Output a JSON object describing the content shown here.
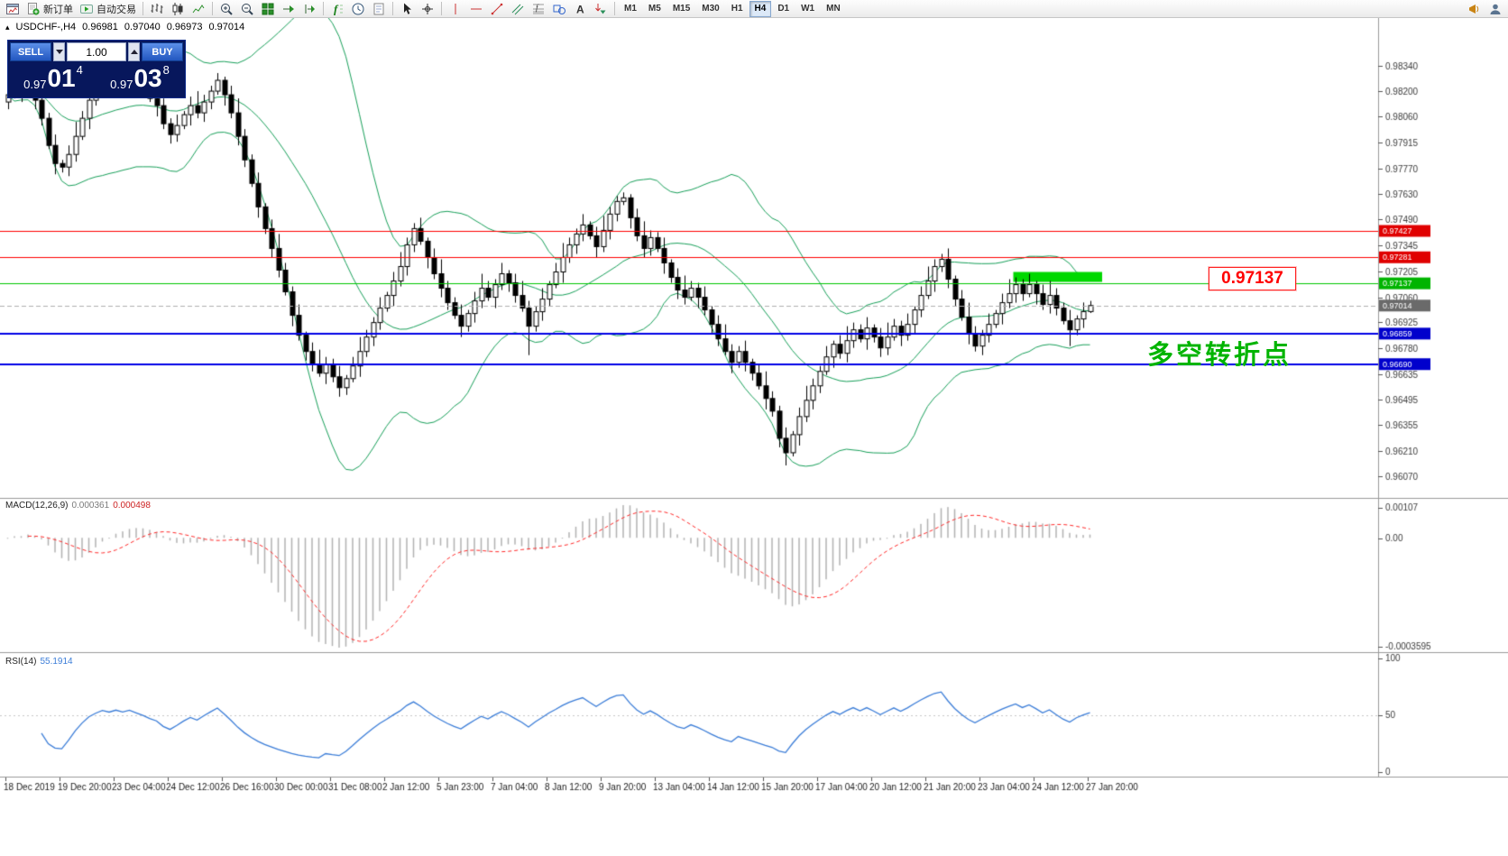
{
  "toolbar": {
    "buttons": [
      {
        "icon": "chart-window"
      },
      {
        "icon": "new-order",
        "label": "新订单"
      },
      {
        "icon": "autotrade",
        "label": "自动交易"
      },
      {
        "sep": true
      },
      {
        "icon": "bars-chart"
      },
      {
        "icon": "candles-chart"
      },
      {
        "icon": "line-chart"
      },
      {
        "sep": true
      },
      {
        "icon": "zoom-in"
      },
      {
        "icon": "zoom-out"
      },
      {
        "icon": "tile-windows"
      },
      {
        "icon": "auto-scroll"
      },
      {
        "icon": "chart-shift"
      },
      {
        "sep": true
      },
      {
        "icon": "indicators"
      },
      {
        "icon": "periods"
      },
      {
        "icon": "templates"
      },
      {
        "sep": true
      },
      {
        "icon": "cursor"
      },
      {
        "icon": "crosshair"
      },
      {
        "sep": true
      },
      {
        "icon": "vline"
      },
      {
        "icon": "hline"
      },
      {
        "icon": "trendline"
      },
      {
        "icon": "channel"
      },
      {
        "icon": "fibonacci"
      },
      {
        "icon": "shapes"
      },
      {
        "icon": "text-tool"
      },
      {
        "icon": "arrows"
      },
      {
        "sep": true
      },
      {
        "tf": "M1"
      },
      {
        "tf": "M5"
      },
      {
        "tf": "M15"
      },
      {
        "tf": "M30"
      },
      {
        "tf": "H1"
      },
      {
        "tf": "H4",
        "active": true
      },
      {
        "tf": "D1"
      },
      {
        "tf": "W1"
      },
      {
        "tf": "MN"
      },
      {
        "icon": "megaphone",
        "right": true
      },
      {
        "icon": "community"
      }
    ]
  },
  "chart_header": {
    "collapse_icon": "▴",
    "symbol": "USDCHF-,H4",
    "open": "0.96981",
    "high": "0.97040",
    "low": "0.96973",
    "close": "0.97014"
  },
  "trade_panel": {
    "sell_label": "SELL",
    "buy_label": "BUY",
    "volume": "1.00",
    "sell_price_prefix": "0.97",
    "sell_price_big": "01",
    "sell_price_sup": "4",
    "buy_price_prefix": "0.97",
    "buy_price_big": "03",
    "buy_price_sup": "8"
  },
  "indicator_labels": {
    "macd_name": "MACD(12,26,9)",
    "macd_main": "0.000361",
    "macd_signal": "0.000498",
    "rsi_name": "RSI(14)",
    "rsi_value": "55.1914"
  },
  "annotations": {
    "price_callout": "0.97137",
    "turning_point": "多空转折点"
  },
  "chart_data": [
    {
      "type": "candlestick",
      "title": "USDCHF-,H4",
      "first_open": 0.9814,
      "closes": [
        0.9818,
        0.9825,
        0.982,
        0.9827,
        0.9815,
        0.9805,
        0.979,
        0.978,
        0.9778,
        0.9785,
        0.9795,
        0.9805,
        0.9815,
        0.9822,
        0.9828,
        0.9825,
        0.9829,
        0.9826,
        0.9829,
        0.9825,
        0.9821,
        0.9816,
        0.9812,
        0.9802,
        0.9796,
        0.9801,
        0.9807,
        0.9812,
        0.9808,
        0.9814,
        0.982,
        0.9826,
        0.9818,
        0.9808,
        0.9795,
        0.9782,
        0.9769,
        0.9756,
        0.9744,
        0.9733,
        0.9721,
        0.9709,
        0.9696,
        0.9685,
        0.9676,
        0.9669,
        0.9664,
        0.9669,
        0.9662,
        0.9656,
        0.9661,
        0.9668,
        0.9676,
        0.9684,
        0.9692,
        0.97,
        0.9707,
        0.9715,
        0.9723,
        0.9735,
        0.9744,
        0.9737,
        0.9728,
        0.9719,
        0.9711,
        0.9703,
        0.9696,
        0.969,
        0.9697,
        0.9704,
        0.9711,
        0.9706,
        0.9713,
        0.9719,
        0.9714,
        0.9707,
        0.97,
        0.969,
        0.9698,
        0.9705,
        0.9713,
        0.972,
        0.9728,
        0.9735,
        0.9741,
        0.9746,
        0.974,
        0.9734,
        0.9743,
        0.9752,
        0.9759,
        0.9761,
        0.975,
        0.974,
        0.9733,
        0.9739,
        0.9733,
        0.9725,
        0.9717,
        0.971,
        0.9706,
        0.9711,
        0.9706,
        0.9699,
        0.9691,
        0.9683,
        0.9676,
        0.967,
        0.9676,
        0.967,
        0.9664,
        0.9657,
        0.965,
        0.9643,
        0.9628,
        0.962,
        0.963,
        0.964,
        0.9649,
        0.9657,
        0.9665,
        0.9673,
        0.968,
        0.9675,
        0.9682,
        0.9688,
        0.9683,
        0.9689,
        0.9684,
        0.9678,
        0.9684,
        0.969,
        0.9685,
        0.9691,
        0.9699,
        0.9707,
        0.9715,
        0.9723,
        0.9727,
        0.9716,
        0.9705,
        0.9695,
        0.9686,
        0.9679,
        0.9685,
        0.9691,
        0.9697,
        0.9703,
        0.9708,
        0.9713,
        0.9708,
        0.9713,
        0.9708,
        0.9702,
        0.9707,
        0.97,
        0.9693,
        0.9688,
        0.9694,
        0.96981,
        0.97014
      ],
      "wick_high_pips": [
        3,
        6,
        2,
        5,
        8,
        4
      ],
      "wick_low_pips": [
        4,
        2,
        6,
        3,
        5
      ],
      "wick_overrides": {
        "31": {
          "high": 0.983
        },
        "77": {
          "low": 0.9674
        },
        "91": {
          "high": 0.9764
        },
        "115": {
          "low": 0.9613
        },
        "138": {
          "high": 0.973
        },
        "157": {
          "low": 0.9679
        }
      },
      "last_candle": {
        "open": 0.96981,
        "high": 0.9704,
        "low": 0.96973,
        "close": 0.97014
      },
      "bollinger": {
        "period": 20,
        "deviation": 2,
        "color": "#18a05a"
      },
      "y_ticks": [
        "0.98340",
        "0.98200",
        "0.98060",
        "0.97915",
        "0.97770",
        "0.97630",
        "0.97490",
        "0.97345",
        "0.97205",
        "0.97060",
        "0.96925",
        "0.96780",
        "0.96635",
        "0.96495",
        "0.96355",
        "0.96210",
        "0.96070"
      ],
      "x_labels": [
        "18 Dec 2019",
        "19 Dec 20:00",
        "23 Dec 04:00",
        "24 Dec 12:00",
        "26 Dec 16:00",
        "30 Dec 00:00",
        "31 Dec 08:00",
        "2 Jan 12:00",
        "5 Jan 23:00",
        "7 Jan 04:00",
        "8 Jan 12:00",
        "9 Jan 20:00",
        "13 Jan 04:00",
        "14 Jan 12:00",
        "15 Jan 20:00",
        "17 Jan 04:00",
        "20 Jan 12:00",
        "21 Jan 20:00",
        "23 Jan 04:00",
        "24 Jan 12:00",
        "27 Jan 20:00"
      ],
      "x_label_step_candles": 8,
      "hlines": [
        {
          "price": 0.97427,
          "color": "#ff0000",
          "width": 1,
          "box": "#e00000"
        },
        {
          "price": 0.97281,
          "color": "#ff0000",
          "width": 1,
          "box": "#e00000"
        },
        {
          "price": 0.97137,
          "color": "#00c800",
          "width": 1,
          "box": "#00b400"
        },
        {
          "price": 0.96859,
          "color": "#0000e6",
          "width": 2,
          "box": "#0000cc"
        },
        {
          "price": 0.9669,
          "color": "#0000e6",
          "width": 2,
          "box": "#0000cc"
        }
      ],
      "bid_line": {
        "price": 0.97014,
        "color": "#b0b0b0",
        "box": "#6a6a6a"
      },
      "rect_object": {
        "start_index": 149,
        "end_x": 1222,
        "price_top": 0.972,
        "price_bottom": 0.97145,
        "color": "#00d800"
      },
      "candle_colors": {
        "up_fill": "#ffffff",
        "down_fill": "#000000",
        "border": "#000000"
      }
    },
    {
      "type": "macd",
      "label": "MACD(12,26,9)",
      "fast": 12,
      "slow": 26,
      "signal_period": 9,
      "value_main": "0.000361",
      "value_signal": "0.000498",
      "scale_labels": [
        "0.00107",
        "0.00",
        "-0.0003595"
      ],
      "histogram_color": "#b2b2b2",
      "signal_color": "#ff2a2a"
    },
    {
      "type": "rsi",
      "label": "RSI(14)",
      "period": 14,
      "value": "55.1914",
      "scale_labels": [
        "100",
        "50",
        "0"
      ],
      "line_color": "#3b7dd8",
      "level": 50
    }
  ]
}
